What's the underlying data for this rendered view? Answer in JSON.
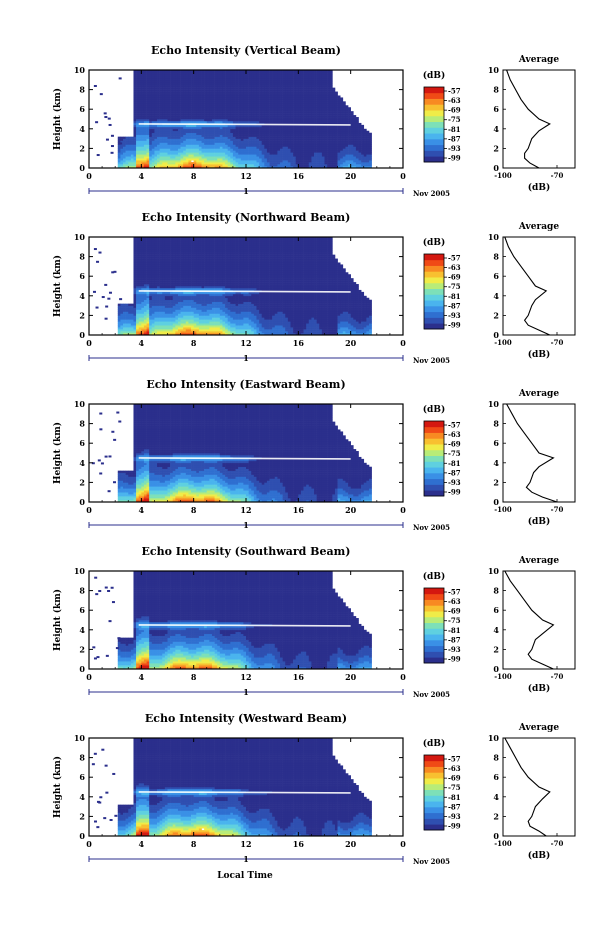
{
  "figure": {
    "xlabel": "Local Time",
    "date_label": "Nov 2005",
    "colorbar_unit": "(dB)",
    "profile_title": "Average",
    "profile_xlabel": "(dB)",
    "colors": {
      "colormap": [
        "#2b2f8c",
        "#2f4fb0",
        "#2f6fd0",
        "#3a90e6",
        "#4ab4ee",
        "#5fd0e0",
        "#7de0b8",
        "#b8ec78",
        "#f0ec48",
        "#f8c030",
        "#f88a22",
        "#f04a16",
        "#d41810"
      ],
      "frame": "#000000",
      "background": "#ffffff"
    }
  },
  "chart_data": [
    {
      "type": "heatmap",
      "title": "Echo Intensity (Vertical Beam)",
      "ylabel": "Height (km)",
      "x_ticks": [
        "0",
        "4",
        "8",
        "12",
        "16",
        "20",
        "0"
      ],
      "y_ticks": [
        "0",
        "2",
        "4",
        "6",
        "8",
        "10"
      ],
      "xlim": [
        0,
        24
      ],
      "ylim": [
        0,
        10
      ],
      "sub_axis_label": "1",
      "colorbar_ticks": [
        "-57",
        "-63",
        "-69",
        "-75",
        "-81",
        "-87",
        "-93",
        "-99"
      ],
      "profile": {
        "x_ticks": [
          "-100",
          "-70"
        ],
        "y_ticks": [
          "0",
          "2",
          "4",
          "6",
          "8",
          "10"
        ],
        "xlim": [
          -100,
          -60
        ],
        "points": [
          [
            -80,
            0
          ],
          [
            -85,
            0.5
          ],
          [
            -88,
            1
          ],
          [
            -88,
            1.5
          ],
          [
            -86,
            2
          ],
          [
            -84,
            3
          ],
          [
            -80,
            3.8
          ],
          [
            -74,
            4.5
          ],
          [
            -80,
            5
          ],
          [
            -86,
            6
          ],
          [
            -90,
            7
          ],
          [
            -93,
            8
          ],
          [
            -96,
            9
          ],
          [
            -98,
            10
          ]
        ]
      }
    },
    {
      "type": "heatmap",
      "title": "Echo Intensity (Northward Beam)",
      "ylabel": "Height (km)",
      "x_ticks": [
        "0",
        "4",
        "8",
        "12",
        "16",
        "20",
        "0"
      ],
      "y_ticks": [
        "0",
        "2",
        "4",
        "6",
        "8",
        "10"
      ],
      "xlim": [
        0,
        24
      ],
      "ylim": [
        0,
        10
      ],
      "sub_axis_label": "1",
      "colorbar_ticks": [
        "-57",
        "-63",
        "-69",
        "-75",
        "-81",
        "-87",
        "-93",
        "-99"
      ],
      "profile": {
        "x_ticks": [
          "-100",
          "-70"
        ],
        "y_ticks": [
          "0",
          "2",
          "4",
          "6",
          "8",
          "10"
        ],
        "xlim": [
          -100,
          -60
        ],
        "points": [
          [
            -74,
            0
          ],
          [
            -80,
            0.5
          ],
          [
            -86,
            1
          ],
          [
            -88,
            1.5
          ],
          [
            -86,
            2
          ],
          [
            -84,
            3
          ],
          [
            -82,
            3.6
          ],
          [
            -76,
            4.5
          ],
          [
            -82,
            5
          ],
          [
            -86,
            6
          ],
          [
            -90,
            7
          ],
          [
            -94,
            8
          ],
          [
            -97,
            9
          ],
          [
            -99,
            10
          ]
        ]
      }
    },
    {
      "type": "heatmap",
      "title": "Echo Intensity (Eastward Beam)",
      "ylabel": "Height (km)",
      "x_ticks": [
        "0",
        "4",
        "8",
        "12",
        "16",
        "20",
        "0"
      ],
      "y_ticks": [
        "0",
        "2",
        "4",
        "6",
        "8",
        "10"
      ],
      "xlim": [
        0,
        24
      ],
      "ylim": [
        0,
        10
      ],
      "sub_axis_label": "1",
      "colorbar_ticks": [
        "-57",
        "-63",
        "-69",
        "-75",
        "-81",
        "-87",
        "-93",
        "-99"
      ],
      "profile": {
        "x_ticks": [
          "-100",
          "-70"
        ],
        "y_ticks": [
          "0",
          "2",
          "4",
          "6",
          "8",
          "10"
        ],
        "xlim": [
          -100,
          -60
        ],
        "points": [
          [
            -70,
            0
          ],
          [
            -78,
            0.5
          ],
          [
            -84,
            1
          ],
          [
            -87,
            1.5
          ],
          [
            -85,
            2
          ],
          [
            -83,
            3
          ],
          [
            -80,
            3.6
          ],
          [
            -72,
            4.5
          ],
          [
            -80,
            5
          ],
          [
            -84,
            6
          ],
          [
            -88,
            7
          ],
          [
            -92,
            8
          ],
          [
            -95,
            9
          ],
          [
            -98,
            10
          ]
        ]
      }
    },
    {
      "type": "heatmap",
      "title": "Echo Intensity (Southward Beam)",
      "ylabel": "Height (km)",
      "x_ticks": [
        "0",
        "4",
        "8",
        "12",
        "16",
        "20",
        "0"
      ],
      "y_ticks": [
        "0",
        "2",
        "4",
        "6",
        "8",
        "10"
      ],
      "xlim": [
        0,
        24
      ],
      "ylim": [
        0,
        10
      ],
      "sub_axis_label": "1",
      "colorbar_ticks": [
        "-57",
        "-63",
        "-69",
        "-75",
        "-81",
        "-87",
        "-93",
        "-99"
      ],
      "profile": {
        "x_ticks": [
          "-100",
          "-70"
        ],
        "y_ticks": [
          "0",
          "2",
          "4",
          "6",
          "8",
          "10"
        ],
        "xlim": [
          -100,
          -60
        ],
        "points": [
          [
            -72,
            0
          ],
          [
            -78,
            0.5
          ],
          [
            -84,
            1
          ],
          [
            -86,
            1.5
          ],
          [
            -84,
            2
          ],
          [
            -82,
            3
          ],
          [
            -78,
            3.6
          ],
          [
            -72,
            4.5
          ],
          [
            -78,
            5
          ],
          [
            -84,
            6
          ],
          [
            -88,
            7
          ],
          [
            -92,
            8
          ],
          [
            -96,
            9
          ],
          [
            -99,
            10
          ]
        ]
      }
    },
    {
      "type": "heatmap",
      "title": "Echo Intensity (Westward Beam)",
      "ylabel": "Height (km)",
      "x_ticks": [
        "0",
        "4",
        "8",
        "12",
        "16",
        "20",
        "0"
      ],
      "y_ticks": [
        "0",
        "2",
        "4",
        "6",
        "8",
        "10"
      ],
      "xlim": [
        0,
        24
      ],
      "ylim": [
        0,
        10
      ],
      "sub_axis_label": "1",
      "colorbar_ticks": [
        "-57",
        "-63",
        "-69",
        "-75",
        "-81",
        "-87",
        "-93",
        "-99"
      ],
      "profile": {
        "x_ticks": [
          "-100",
          "-70"
        ],
        "y_ticks": [
          "0",
          "2",
          "4",
          "6",
          "8",
          "10"
        ],
        "xlim": [
          -100,
          -60
        ],
        "points": [
          [
            -76,
            0
          ],
          [
            -80,
            0.5
          ],
          [
            -85,
            1
          ],
          [
            -86,
            1.5
          ],
          [
            -84,
            2
          ],
          [
            -82,
            3
          ],
          [
            -78,
            3.8
          ],
          [
            -74,
            4.5
          ],
          [
            -80,
            5
          ],
          [
            -86,
            6
          ],
          [
            -90,
            7
          ],
          [
            -93,
            8
          ],
          [
            -96,
            9
          ],
          [
            -99,
            10
          ]
        ]
      }
    }
  ]
}
